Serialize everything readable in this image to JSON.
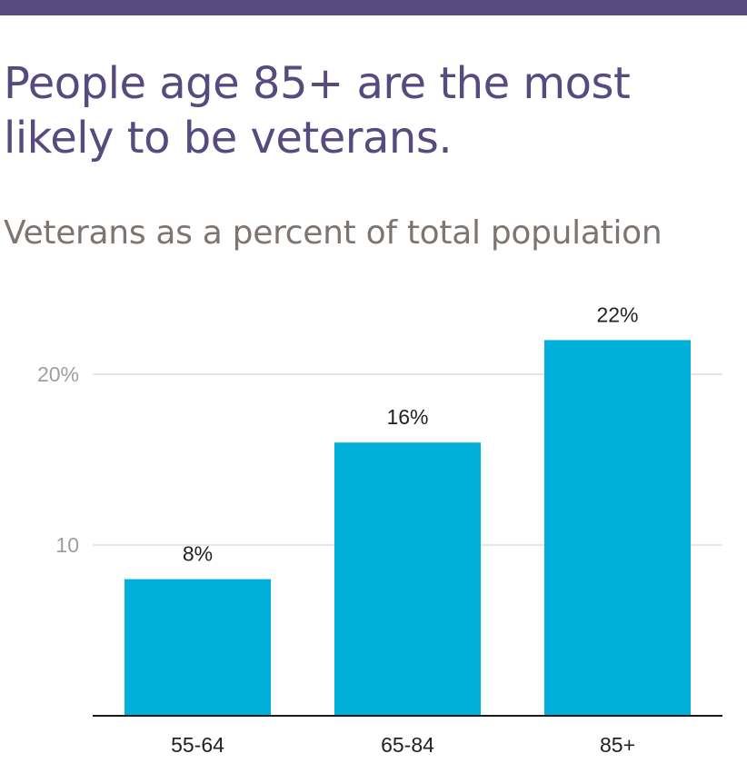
{
  "title": "People age 85+ are the most likely to be veterans.",
  "subtitle": "Veterans as a percent of total population",
  "colors": {
    "top_bar": "#574a7e",
    "title": "#574a7e",
    "subtitle": "#7f7570",
    "bar": "#00b0db",
    "grid": "#e6e6e6",
    "axis": "#1a1a1a"
  },
  "chart_data": {
    "type": "bar",
    "title": "People age 85+ are the most likely to be veterans.",
    "subtitle": "Veterans as a percent of total population",
    "categories": [
      "55-64",
      "65-84",
      "85+"
    ],
    "values": [
      8,
      16,
      22
    ],
    "data_labels": [
      "8%",
      "16%",
      "22%"
    ],
    "ylim": [
      0,
      22
    ],
    "yticks": [
      {
        "value": 10,
        "label": "10"
      },
      {
        "value": 20,
        "label": "20%"
      }
    ],
    "grid": true,
    "legend": "none",
    "xlabel": "",
    "ylabel": ""
  }
}
